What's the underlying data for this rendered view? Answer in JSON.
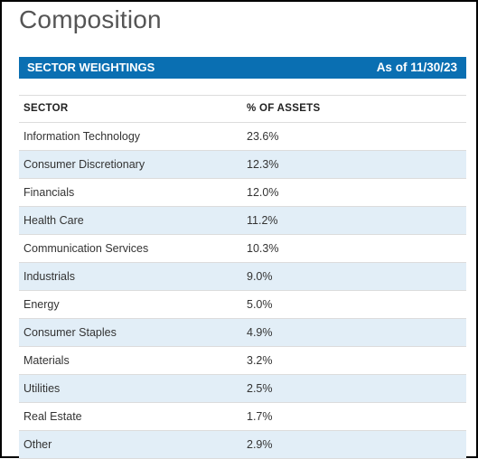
{
  "page": {
    "title": "Composition"
  },
  "panel": {
    "heading": "SECTOR WEIGHTINGS",
    "as_of": "As of 11/30/23"
  },
  "table": {
    "columns": [
      "SECTOR",
      "% OF ASSETS"
    ],
    "rows": [
      {
        "sector": "Information Technology",
        "pct": "23.6%"
      },
      {
        "sector": "Consumer Discretionary",
        "pct": "12.3%"
      },
      {
        "sector": "Financials",
        "pct": "12.0%"
      },
      {
        "sector": "Health Care",
        "pct": "11.2%"
      },
      {
        "sector": "Communication Services",
        "pct": "10.3%"
      },
      {
        "sector": "Industrials",
        "pct": "9.0%"
      },
      {
        "sector": "Energy",
        "pct": "5.0%"
      },
      {
        "sector": "Consumer Staples",
        "pct": "4.9%"
      },
      {
        "sector": "Materials",
        "pct": "3.2%"
      },
      {
        "sector": "Utilities",
        "pct": "2.5%"
      },
      {
        "sector": "Real Estate",
        "pct": "1.7%"
      },
      {
        "sector": "Other",
        "pct": "2.9%"
      }
    ]
  },
  "colors": {
    "header_bar": "#0a6fb2",
    "alt_row": "#e2eef7",
    "title_text": "#555555"
  }
}
